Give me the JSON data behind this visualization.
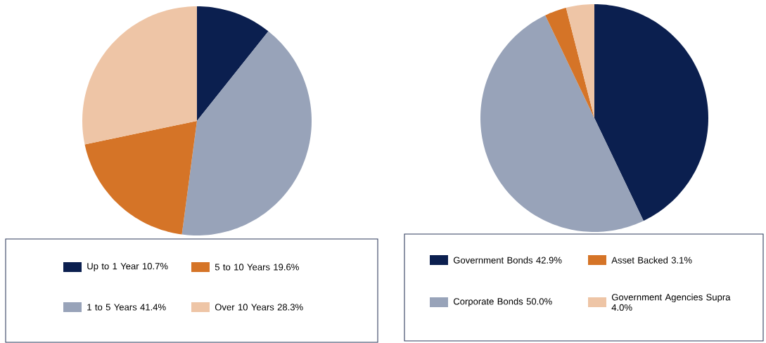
{
  "chart_data": [
    {
      "type": "pie",
      "categories": [
        "Up to 1 Year",
        "1 to 5 Years",
        "5 to 10 Years",
        "Over 10 Years"
      ],
      "values": [
        10.7,
        41.4,
        19.6,
        28.3
      ],
      "value_labels": [
        "10.7%",
        "41.4%",
        "19.6%",
        "28.3%"
      ],
      "colors": [
        "#0b1f4f",
        "#98a3b9",
        "#d57427",
        "#eec5a6"
      ],
      "legend": "bottom"
    },
    {
      "type": "pie",
      "categories": [
        "Government Bonds",
        "Corporate Bonds",
        "Asset Backed",
        "Government Agencies Supra"
      ],
      "values": [
        42.9,
        50.0,
        3.1,
        4.0
      ],
      "value_labels": [
        "42.9%",
        "50.0%",
        "3.1%",
        "4.0%"
      ],
      "colors": [
        "#0b1f4f",
        "#98a3b9",
        "#d57427",
        "#eec5a6"
      ],
      "legend": "bottom"
    }
  ]
}
